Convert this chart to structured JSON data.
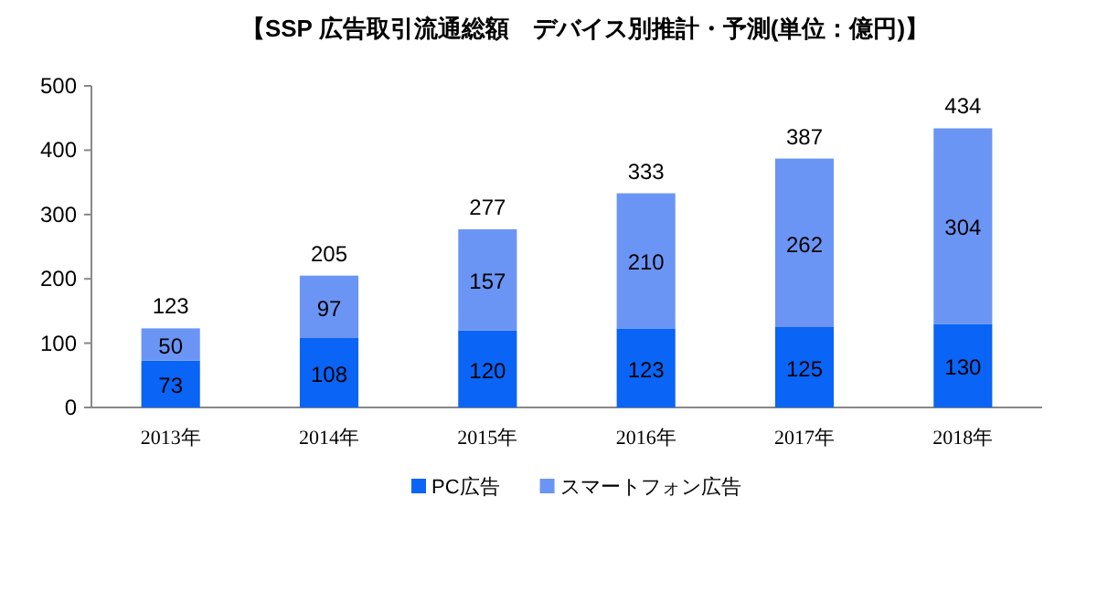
{
  "chart_data": {
    "type": "bar",
    "title": "【SSP 広告取引流通総額　デバイス別推計・予測(単位：億円)】",
    "stacked": true,
    "categories": [
      "2013年",
      "2014年",
      "2015年",
      "2016年",
      "2017年",
      "2018年"
    ],
    "series": [
      {
        "name": "PC広告",
        "color": "#0a64f5",
        "values": [
          73,
          108,
          120,
          123,
          125,
          130
        ]
      },
      {
        "name": "スマートフォン広告",
        "color": "#6b95f5",
        "values": [
          50,
          97,
          157,
          210,
          262,
          304
        ]
      }
    ],
    "totals": [
      "123",
      "205",
      "277",
      "333",
      "387",
      "434"
    ],
    "data_labels": true,
    "ylim": [
      0,
      500
    ],
    "yticks": [
      0,
      100,
      200,
      300,
      400,
      500
    ],
    "grid": false,
    "legend": "bottom"
  }
}
